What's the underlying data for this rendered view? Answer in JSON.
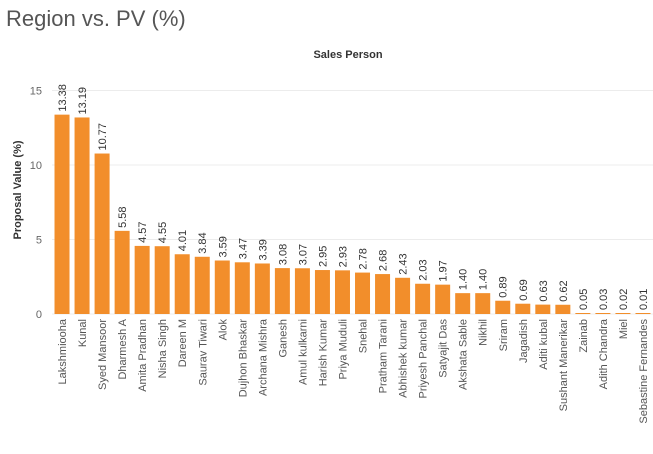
{
  "title": "Region vs. PV (%)",
  "chart_data": {
    "type": "bar",
    "title": "Region vs. PV (%)",
    "xlabel": "Sales Person",
    "ylabel": "Proposal Value (%)",
    "ylim": [
      0,
      17
    ],
    "yticks": [
      0,
      5,
      10,
      15
    ],
    "grid": true,
    "bar_color": "#F28E2B",
    "categories": [
      "Lakshmiooha",
      "Kunal",
      "Syed Mansoor",
      "Dharmesh A",
      "Amita Pradhan",
      "Nisha Singh",
      "Dareen M",
      "Saurav Tiwari",
      "Alok",
      "Dujhon Bhaskar",
      "Archana Mishra",
      "Ganesh",
      "Amul kulkarni",
      "Harish Kumar",
      "Priya Muduli",
      "Snehal",
      "Pratham Tarani",
      "Abhishek kumar",
      "Priyesh Panchal",
      "Satyajit Das",
      "Akshata Sable",
      "Nikhil",
      "Sriram",
      "Jagadish",
      "Aditi kubal",
      "Sushant Manerikar",
      "Zainab",
      "Adith Chandra",
      "Miel",
      "Sebastine Fernandes"
    ],
    "values": [
      13.38,
      13.19,
      10.77,
      5.58,
      4.57,
      4.55,
      4.01,
      3.84,
      3.59,
      3.47,
      3.39,
      3.08,
      3.07,
      2.95,
      2.93,
      2.78,
      2.68,
      2.43,
      2.03,
      1.97,
      1.4,
      1.4,
      0.89,
      0.69,
      0.63,
      0.62,
      0.05,
      0.03,
      0.02,
      0.01
    ],
    "value_labels": [
      "13.38",
      "13.19",
      "10.77",
      "5.58",
      "4.57",
      "4.55",
      "4.01",
      "3.84",
      "3.59",
      "3.47",
      "3.39",
      "3.08",
      "3.07",
      "2.95",
      "2.93",
      "2.78",
      "2.68",
      "2.43",
      "2.03",
      "1.97",
      "1.40",
      "1.40",
      "0.89",
      "0.69",
      "0.63",
      "0.62",
      "0.05",
      "0.03",
      "0.02",
      "0.01"
    ]
  }
}
